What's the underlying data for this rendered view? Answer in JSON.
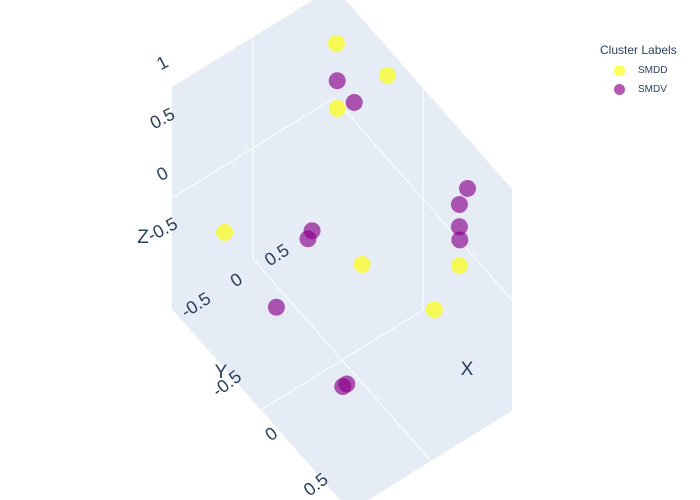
{
  "chart_data": {
    "type": "scatter",
    "subtype": "scatter3d",
    "title": "",
    "axes": {
      "x": {
        "label": "X",
        "ticks": [
          "-0.5",
          "0",
          "0.5"
        ],
        "range": [
          -1,
          1
        ]
      },
      "y": {
        "label": "Y",
        "ticks": [
          "-0.5",
          "0",
          "0.5"
        ],
        "range": [
          -1,
          1
        ]
      },
      "z": {
        "label": "Z",
        "ticks": [
          "-0.5",
          "0",
          "0.5",
          "1"
        ],
        "range": [
          -1,
          1
        ]
      }
    },
    "grid": true,
    "legend": {
      "title": "Cluster Labels",
      "placement": "top-right"
    },
    "series": [
      {
        "name": "SMDD",
        "color": "#ffff00",
        "points": [
          {
            "x": -0.4,
            "y": -1.0,
            "z": 0.75
          },
          {
            "x": -0.7,
            "y": -0.7,
            "z": 0.9
          },
          {
            "x": -0.6,
            "y": -0.6,
            "z": 0.45
          },
          {
            "x": 0.5,
            "y": -0.9,
            "z": -0.1
          },
          {
            "x": 0.4,
            "y": -0.7,
            "z": -0.5
          },
          {
            "x": -0.5,
            "y": 0.9,
            "z": 0.1
          },
          {
            "x": 0.5,
            "y": 0.3,
            "z": 0.45
          }
        ]
      },
      {
        "name": "SMDV",
        "color": "#8b008b",
        "points": [
          {
            "x": -0.6,
            "y": -0.6,
            "z": 0.7
          },
          {
            "x": -0.5,
            "y": -0.7,
            "z": 0.55
          },
          {
            "x": 0.5,
            "y": -1.0,
            "z": 0.55
          },
          {
            "x": 0.5,
            "y": -0.9,
            "z": 0.45
          },
          {
            "x": 0.5,
            "y": -0.9,
            "z": 0.25
          },
          {
            "x": 0.55,
            "y": -0.85,
            "z": 0.2
          },
          {
            "x": -0.2,
            "y": 0.15,
            "z": 0.05
          },
          {
            "x": -0.2,
            "y": 0.2,
            "z": 0.0
          },
          {
            "x": -0.1,
            "y": 0.7,
            "z": -0.3
          },
          {
            "x": 0.6,
            "y": 0.6,
            "z": -0.4
          },
          {
            "x": 0.6,
            "y": 0.65,
            "z": -0.4
          }
        ]
      }
    ]
  }
}
